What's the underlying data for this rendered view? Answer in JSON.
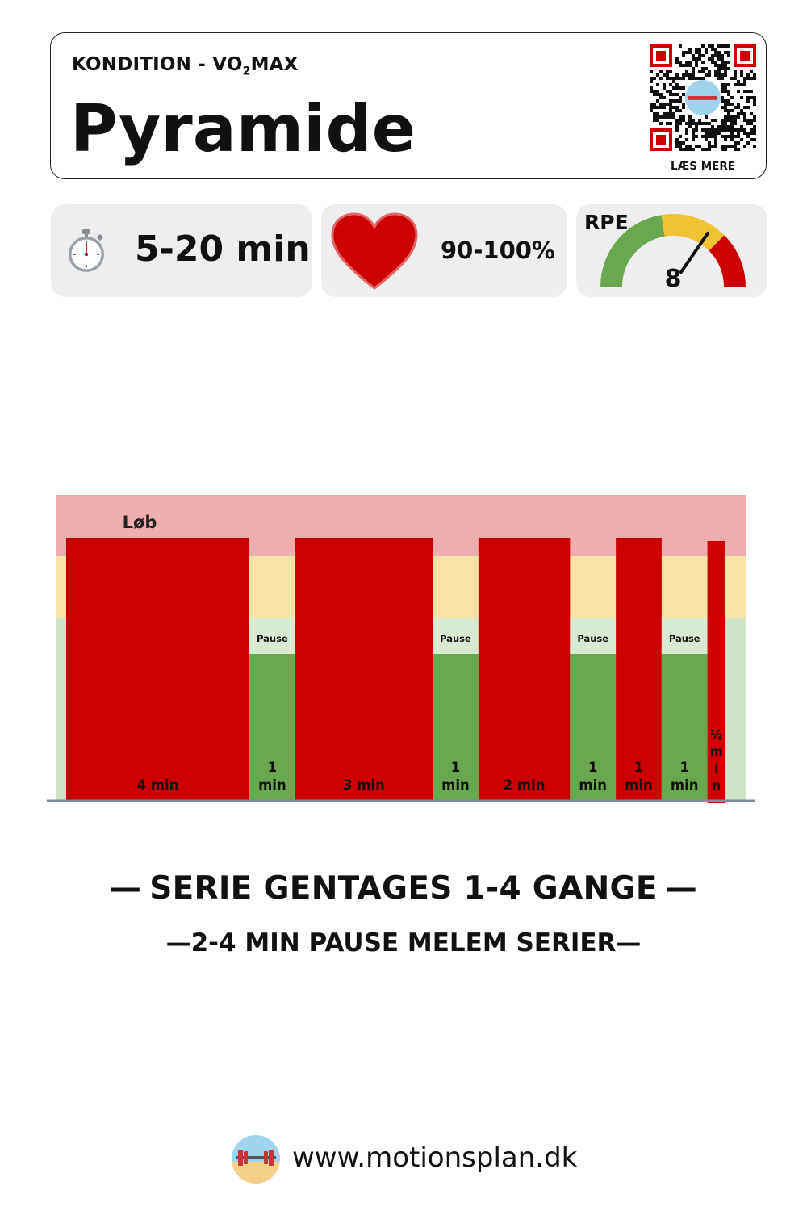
{
  "header": {
    "category_prefix": "KONDITION - VO",
    "category_sub": "2",
    "category_suffix": "MAX",
    "title": "Pyramide",
    "qr_label": "LÆS MERE"
  },
  "stats": {
    "duration": "5-20 min",
    "heart_rate": "90-100%",
    "rpe_label": "RPE",
    "rpe_value": "8"
  },
  "colors": {
    "work": "#cc0000",
    "rest": "#6aa84f",
    "zone_high": "#efaeae",
    "zone_mid": "#f8e4a8",
    "zone_low": "#cfe3c6",
    "rest_label_bg": "#d9ead3",
    "axis": "#7f8c99",
    "gauge_green": "#6aa84f",
    "gauge_yellow": "#f1c232",
    "gauge_red": "#cc0000"
  },
  "chart_data": {
    "type": "bar",
    "series_label": "Løb",
    "segments": [
      {
        "kind": "work",
        "duration_min": 4,
        "label": "4 min"
      },
      {
        "kind": "rest",
        "duration_min": 1,
        "label": "1\nmin",
        "tag": "Pause"
      },
      {
        "kind": "work",
        "duration_min": 3,
        "label": "3 min"
      },
      {
        "kind": "rest",
        "duration_min": 1,
        "label": "1\nmin",
        "tag": "Pause"
      },
      {
        "kind": "work",
        "duration_min": 2,
        "label": "2 min"
      },
      {
        "kind": "rest",
        "duration_min": 1,
        "label": "1\nmin",
        "tag": "Pause"
      },
      {
        "kind": "work",
        "duration_min": 1,
        "label": "1\nmin"
      },
      {
        "kind": "rest",
        "duration_min": 1,
        "label": "1\nmin",
        "tag": "Pause"
      },
      {
        "kind": "work",
        "duration_min": 0.5,
        "label": "½\nm\ni\nn"
      }
    ]
  },
  "repeat": {
    "serie_text": "SERIE GENTAGES 1-4 GANGE",
    "pause_text": "2-4 MIN PAUSE MELEM SERIER",
    "dash": "—"
  },
  "footer": {
    "url": "www.motionsplan.dk"
  }
}
